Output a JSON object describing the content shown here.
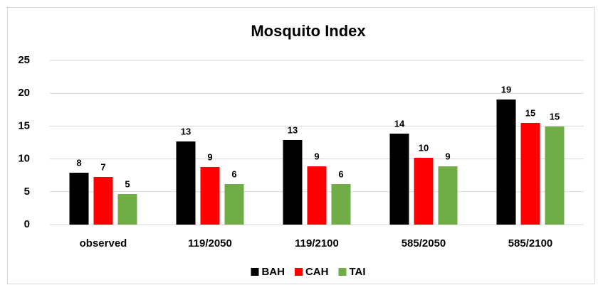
{
  "chart_data": {
    "type": "bar",
    "title": "Mosquito Index",
    "categories": [
      "observed",
      "119/2050",
      "119/2100",
      "585/2050",
      "585/2100"
    ],
    "series": [
      {
        "name": "BAH",
        "color": "#000000",
        "values": [
          7.9,
          12.66,
          12.88,
          13.85,
          19.05
        ],
        "value_labels": [
          "8",
          "13",
          "13",
          "14",
          "19"
        ]
      },
      {
        "name": "CAH",
        "color": "#ff0000",
        "values": [
          7.25,
          8.77,
          8.87,
          10.17,
          15.48
        ],
        "value_labels": [
          "7",
          "9",
          "9",
          "10",
          "15"
        ]
      },
      {
        "name": "TAI",
        "color": "#70ad47",
        "values": [
          4.65,
          6.17,
          6.17,
          8.87,
          14.94
        ],
        "value_labels": [
          "5",
          "6",
          "6",
          "9",
          "15"
        ]
      }
    ],
    "ylim": [
      0,
      25
    ],
    "yticks": [
      0,
      5,
      10,
      15,
      20,
      25
    ],
    "grid": true,
    "legend": "bottom"
  }
}
